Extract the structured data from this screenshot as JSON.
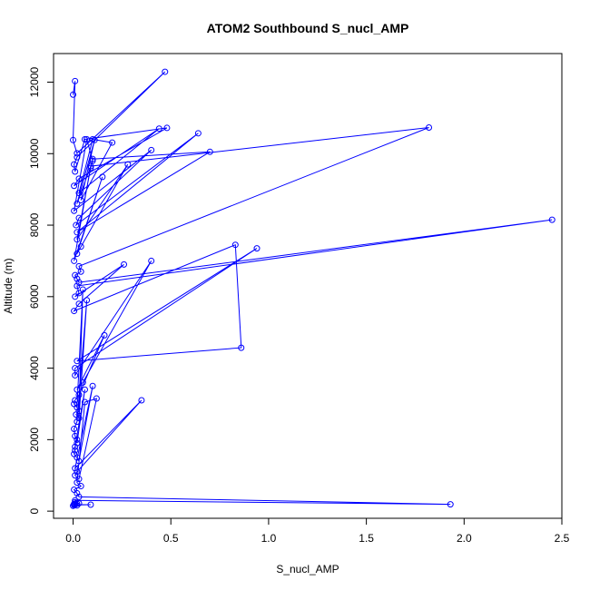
{
  "chart_data": {
    "type": "line",
    "title": "ATOM2 Southbound S_nucl_AMP",
    "xlabel": "S_nucl_AMP",
    "ylabel": "Altitude (m)",
    "xlim": [
      -0.1,
      2.5
    ],
    "ylim": [
      -200,
      12800
    ],
    "x_ticks": [
      0.0,
      0.5,
      1.0,
      1.5,
      2.0,
      2.5
    ],
    "x_tick_labels": [
      "0.0",
      "0.5",
      "1.0",
      "1.5",
      "2.0",
      "2.5"
    ],
    "y_ticks": [
      0,
      2000,
      4000,
      6000,
      8000,
      10000,
      12000
    ],
    "y_tick_labels": [
      "0",
      "2000",
      "4000",
      "6000",
      "8000",
      "10000",
      "12000"
    ],
    "grid": false,
    "series_color": "#0000ff",
    "markers": "open-circle",
    "series": [
      {
        "x": [
          0.0,
          0.01,
          0.0,
          0.02,
          0.47,
          0.02,
          0.005,
          0.01,
          0.06,
          0.48,
          0.03,
          0.005,
          0.44,
          0.03,
          0.1,
          0.2,
          0.04,
          0.11,
          0.02,
          0.1,
          0.07,
          0.005,
          0.4,
          0.03,
          0.015,
          0.64,
          0.02,
          0.7,
          0.1,
          0.09,
          0.02,
          0.28,
          0.04,
          0.02,
          0.15,
          0.005,
          0.09,
          1.82,
          0.03,
          0.04,
          0.01,
          0.02,
          0.03,
          2.45,
          0.02,
          0.03,
          0.01,
          0.26,
          0.03,
          0.005,
          0.83,
          0.86,
          0.02,
          0.94,
          0.01,
          0.01,
          0.4,
          0.05,
          0.02,
          0.16,
          0.03,
          0.01,
          0.005,
          0.02,
          0.05,
          0.03,
          0.015,
          0.03,
          0.07,
          0.02,
          0.005,
          0.01,
          0.02,
          0.02,
          0.06,
          0.01,
          0.01,
          0.005,
          0.02,
          0.03,
          0.1,
          0.01,
          0.35,
          0.02,
          0.01,
          0.03,
          0.12,
          0.06,
          0.02,
          0.04,
          0.005,
          0.02,
          0.03,
          1.93,
          0.01,
          0.01,
          0.005,
          0.02,
          0.03,
          0.01,
          0.09,
          0.005,
          0.02,
          0.0,
          0.01
        ],
        "y": [
          11650,
          12030,
          10380,
          10010,
          12290,
          9900,
          9700,
          9500,
          10400,
          10720,
          9300,
          9100,
          10700,
          8900,
          10400,
          10310,
          8700,
          10380,
          8600,
          9800,
          10400,
          8400,
          10100,
          8200,
          8000,
          10570,
          7800,
          10050,
          9850,
          9600,
          7600,
          9700,
          7400,
          7200,
          9350,
          7000,
          9650,
          10730,
          6850,
          6700,
          6600,
          6500,
          6400,
          8150,
          6300,
          6100,
          6000,
          6900,
          5800,
          5600,
          7450,
          4570,
          4200,
          7350,
          4000,
          3800,
          7000,
          3600,
          3400,
          4920,
          3250,
          3100,
          3000,
          2900,
          6200,
          2800,
          2700,
          2600,
          5900,
          2500,
          2300,
          2100,
          2000,
          1900,
          3400,
          1800,
          1700,
          1600,
          1500,
          1400,
          3500,
          1200,
          3100,
          1100,
          1000,
          900,
          3150,
          3050,
          800,
          700,
          600,
          500,
          400,
          190,
          300,
          250,
          200,
          210,
          220,
          180,
          180,
          170,
          160,
          150,
          200
        ]
      }
    ]
  }
}
